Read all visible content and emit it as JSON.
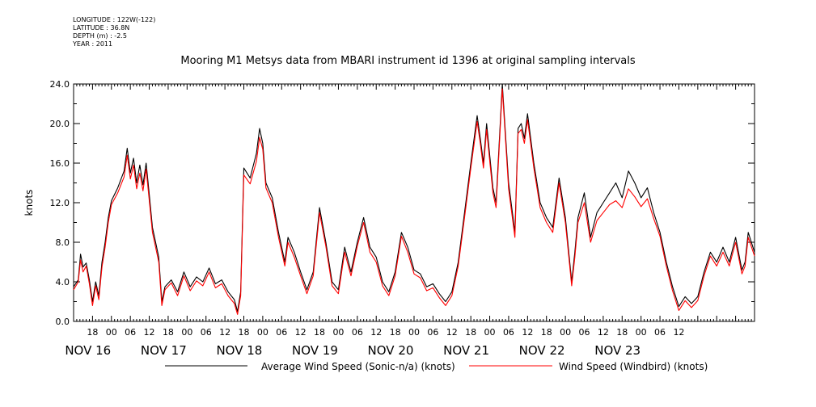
{
  "meta": {
    "longitude": "LONGITUDE : 122W(-122)",
    "latitude": "LATITUDE : 36.8N",
    "depth": "DEPTH (m) : -2.5",
    "year": "YEAR : 2011"
  },
  "colors": {
    "series_black": "#000000",
    "series_red": "#ff0000",
    "axis": "#000000",
    "background": "#ffffff"
  },
  "chart_data": {
    "type": "line",
    "title": "Mooring M1 Metsys data from MBARI instrument id 1396 at original sampling intervals",
    "xlabel": "",
    "ylabel": "knots",
    "ylim": [
      0,
      24
    ],
    "yticks": [
      "0.0",
      "4.0",
      "8.0",
      "12.0",
      "16.0",
      "20.0",
      "24.0"
    ],
    "xlim_hours": [
      0,
      216
    ],
    "x_unit": "hours since 2011-11-15 12:00",
    "hour_tick_labels": [
      "18",
      "00",
      "06",
      "12",
      "18",
      "00",
      "06",
      "12",
      "18",
      "00",
      "06",
      "12",
      "18",
      "00",
      "06",
      "12",
      "18",
      "00",
      "06",
      "12",
      "18",
      "00",
      "06",
      "12",
      "18",
      "00",
      "06",
      "12",
      "18",
      "00",
      "06",
      "12"
    ],
    "day_labels": [
      "NOV 16",
      "NOV 17",
      "NOV 18",
      "NOV 19",
      "NOV 20",
      "NOV 21",
      "NOV 22",
      "NOV 23"
    ],
    "grid": false,
    "legend_position": "bottom",
    "series": [
      {
        "name": "Average Wind Speed (Sonic-n/a) (knots)",
        "color": "#000000",
        "points": [
          [
            0,
            3.5
          ],
          [
            1.5,
            4.2
          ],
          [
            2.2,
            6.8
          ],
          [
            3,
            5.5
          ],
          [
            4,
            5.9
          ],
          [
            5,
            4.2
          ],
          [
            6,
            2.0
          ],
          [
            7,
            4.0
          ],
          [
            8,
            2.6
          ],
          [
            9,
            6.0
          ],
          [
            10,
            8.0
          ],
          [
            11,
            10.5
          ],
          [
            12,
            12.2
          ],
          [
            14,
            13.5
          ],
          [
            16,
            15.2
          ],
          [
            17,
            17.5
          ],
          [
            18,
            15.0
          ],
          [
            19,
            16.5
          ],
          [
            20,
            14.0
          ],
          [
            21,
            15.8
          ],
          [
            22,
            13.8
          ],
          [
            23,
            16.0
          ],
          [
            24,
            12.8
          ],
          [
            25,
            9.5
          ],
          [
            27,
            6.5
          ],
          [
            28,
            2.0
          ],
          [
            29,
            3.5
          ],
          [
            31,
            4.2
          ],
          [
            33,
            3.0
          ],
          [
            35,
            5.0
          ],
          [
            37,
            3.5
          ],
          [
            39,
            4.5
          ],
          [
            41,
            4.0
          ],
          [
            43,
            5.4
          ],
          [
            45,
            3.8
          ],
          [
            47,
            4.2
          ],
          [
            49,
            3.0
          ],
          [
            51,
            2.2
          ],
          [
            52,
            1.0
          ],
          [
            53,
            3.0
          ],
          [
            54,
            15.5
          ],
          [
            56,
            14.5
          ],
          [
            58,
            17.0
          ],
          [
            59,
            19.5
          ],
          [
            60,
            18.0
          ],
          [
            61,
            14.0
          ],
          [
            63,
            12.5
          ],
          [
            65,
            9.0
          ],
          [
            67,
            6.0
          ],
          [
            68,
            8.5
          ],
          [
            70,
            7.0
          ],
          [
            72,
            5.0
          ],
          [
            74,
            3.2
          ],
          [
            76,
            5.0
          ],
          [
            78,
            11.5
          ],
          [
            80,
            8.0
          ],
          [
            82,
            4.0
          ],
          [
            84,
            3.2
          ],
          [
            86,
            7.5
          ],
          [
            88,
            5.0
          ],
          [
            90,
            8.0
          ],
          [
            92,
            10.5
          ],
          [
            94,
            7.5
          ],
          [
            96,
            6.5
          ],
          [
            98,
            4.0
          ],
          [
            100,
            3.0
          ],
          [
            102,
            5.0
          ],
          [
            104,
            9.0
          ],
          [
            106,
            7.5
          ],
          [
            108,
            5.2
          ],
          [
            110,
            4.8
          ],
          [
            112,
            3.5
          ],
          [
            114,
            3.8
          ],
          [
            116,
            2.8
          ],
          [
            118,
            2.0
          ],
          [
            120,
            3.0
          ],
          [
            122,
            6.0
          ],
          [
            124,
            11.0
          ],
          [
            126,
            16.0
          ],
          [
            128,
            20.8
          ],
          [
            129,
            18.5
          ],
          [
            130,
            16.0
          ],
          [
            131,
            20.0
          ],
          [
            133,
            13.5
          ],
          [
            134,
            12.0
          ],
          [
            136,
            24.0
          ],
          [
            137,
            19.0
          ],
          [
            138,
            14.0
          ],
          [
            140,
            9.0
          ],
          [
            141,
            19.5
          ],
          [
            142,
            20.0
          ],
          [
            143,
            18.5
          ],
          [
            144,
            21.0
          ],
          [
            146,
            16.0
          ],
          [
            148,
            12.0
          ],
          [
            150,
            10.5
          ],
          [
            152,
            9.5
          ],
          [
            154,
            14.5
          ],
          [
            156,
            10.5
          ],
          [
            158,
            4.0
          ],
          [
            159,
            7.0
          ],
          [
            160,
            10.5
          ],
          [
            162,
            13.0
          ],
          [
            164,
            8.5
          ],
          [
            166,
            11.0
          ],
          [
            168,
            12.0
          ],
          [
            170,
            13.0
          ],
          [
            172,
            14.0
          ],
          [
            174,
            12.5
          ],
          [
            176,
            15.2
          ],
          [
            178,
            14.0
          ],
          [
            180,
            12.5
          ],
          [
            182,
            13.5
          ],
          [
            184,
            11.0
          ],
          [
            186,
            9.0
          ],
          [
            188,
            6.0
          ],
          [
            190,
            3.5
          ],
          [
            192,
            1.5
          ],
          [
            194,
            2.5
          ],
          [
            196,
            1.8
          ],
          [
            198,
            2.5
          ],
          [
            200,
            5.0
          ],
          [
            202,
            7.0
          ],
          [
            204,
            6.0
          ],
          [
            206,
            7.5
          ],
          [
            208,
            6.0
          ],
          [
            210,
            8.5
          ],
          [
            212,
            5.2
          ],
          [
            213,
            6.0
          ],
          [
            214,
            9.0
          ],
          [
            216,
            7.0
          ]
        ]
      },
      {
        "name": "Wind Speed (Windbird) (knots)",
        "color": "#ff0000",
        "points": [
          [
            0,
            3.2
          ],
          [
            1.5,
            4.0
          ],
          [
            2.2,
            6.2
          ],
          [
            3,
            5.0
          ],
          [
            4,
            5.6
          ],
          [
            5,
            3.8
          ],
          [
            6,
            1.6
          ],
          [
            7,
            3.6
          ],
          [
            8,
            2.2
          ],
          [
            9,
            5.5
          ],
          [
            10,
            7.5
          ],
          [
            11,
            10.0
          ],
          [
            12,
            11.8
          ],
          [
            14,
            13.0
          ],
          [
            16,
            14.6
          ],
          [
            17,
            16.8
          ],
          [
            18,
            14.4
          ],
          [
            19,
            15.8
          ],
          [
            20,
            13.4
          ],
          [
            21,
            15.0
          ],
          [
            22,
            13.2
          ],
          [
            23,
            15.4
          ],
          [
            24,
            12.2
          ],
          [
            25,
            9.0
          ],
          [
            27,
            6.0
          ],
          [
            28,
            1.6
          ],
          [
            29,
            3.2
          ],
          [
            31,
            3.9
          ],
          [
            33,
            2.6
          ],
          [
            35,
            4.6
          ],
          [
            37,
            3.1
          ],
          [
            39,
            4.1
          ],
          [
            41,
            3.6
          ],
          [
            43,
            5.0
          ],
          [
            45,
            3.4
          ],
          [
            47,
            3.8
          ],
          [
            49,
            2.6
          ],
          [
            51,
            1.8
          ],
          [
            52,
            0.7
          ],
          [
            53,
            2.6
          ],
          [
            54,
            14.8
          ],
          [
            56,
            13.9
          ],
          [
            58,
            16.2
          ],
          [
            59,
            18.6
          ],
          [
            60,
            17.4
          ],
          [
            61,
            13.5
          ],
          [
            63,
            12.0
          ],
          [
            65,
            8.5
          ],
          [
            67,
            5.6
          ],
          [
            68,
            8.0
          ],
          [
            70,
            6.5
          ],
          [
            72,
            4.6
          ],
          [
            74,
            2.8
          ],
          [
            76,
            4.6
          ],
          [
            78,
            11.0
          ],
          [
            80,
            7.6
          ],
          [
            82,
            3.6
          ],
          [
            84,
            2.8
          ],
          [
            86,
            7.0
          ],
          [
            88,
            4.6
          ],
          [
            90,
            7.6
          ],
          [
            92,
            10.0
          ],
          [
            94,
            7.0
          ],
          [
            96,
            6.0
          ],
          [
            98,
            3.6
          ],
          [
            100,
            2.6
          ],
          [
            102,
            4.6
          ],
          [
            104,
            8.6
          ],
          [
            106,
            7.0
          ],
          [
            108,
            4.8
          ],
          [
            110,
            4.4
          ],
          [
            112,
            3.1
          ],
          [
            114,
            3.4
          ],
          [
            116,
            2.4
          ],
          [
            118,
            1.6
          ],
          [
            120,
            2.6
          ],
          [
            122,
            5.6
          ],
          [
            124,
            10.5
          ],
          [
            126,
            15.5
          ],
          [
            128,
            20.2
          ],
          [
            129,
            18.0
          ],
          [
            130,
            15.5
          ],
          [
            131,
            19.4
          ],
          [
            133,
            13.0
          ],
          [
            134,
            11.5
          ],
          [
            136,
            23.5
          ],
          [
            137,
            18.5
          ],
          [
            138,
            13.4
          ],
          [
            140,
            8.5
          ],
          [
            141,
            19.0
          ],
          [
            142,
            19.4
          ],
          [
            143,
            18.0
          ],
          [
            144,
            20.4
          ],
          [
            146,
            15.5
          ],
          [
            148,
            11.5
          ],
          [
            150,
            10.0
          ],
          [
            152,
            9.0
          ],
          [
            154,
            14.0
          ],
          [
            156,
            10.0
          ],
          [
            158,
            3.6
          ],
          [
            159,
            6.5
          ],
          [
            160,
            10.0
          ],
          [
            162,
            12.0
          ],
          [
            164,
            8.0
          ],
          [
            166,
            10.2
          ],
          [
            168,
            11.0
          ],
          [
            170,
            11.8
          ],
          [
            172,
            12.2
          ],
          [
            174,
            11.5
          ],
          [
            176,
            13.4
          ],
          [
            178,
            12.6
          ],
          [
            180,
            11.6
          ],
          [
            182,
            12.4
          ],
          [
            184,
            10.4
          ],
          [
            186,
            8.6
          ],
          [
            188,
            5.6
          ],
          [
            190,
            3.1
          ],
          [
            192,
            1.1
          ],
          [
            194,
            2.1
          ],
          [
            196,
            1.4
          ],
          [
            198,
            2.1
          ],
          [
            200,
            4.6
          ],
          [
            202,
            6.6
          ],
          [
            204,
            5.6
          ],
          [
            206,
            7.0
          ],
          [
            208,
            5.6
          ],
          [
            210,
            8.0
          ],
          [
            212,
            4.8
          ],
          [
            213,
            5.6
          ],
          [
            214,
            8.5
          ],
          [
            216,
            6.6
          ]
        ]
      }
    ]
  }
}
